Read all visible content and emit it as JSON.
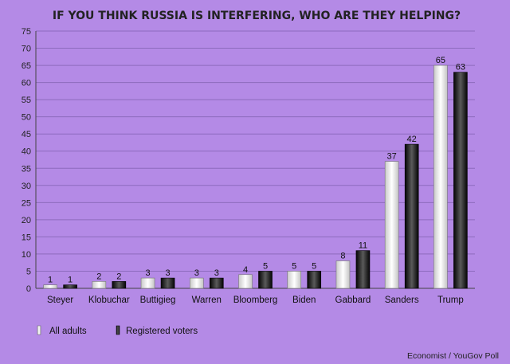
{
  "chart_data": {
    "type": "bar",
    "title": "IF YOU THINK RUSSIA IS INTERFERING, WHO ARE THEY HELPING?",
    "categories": [
      "Steyer",
      "Klobuchar",
      "Buttigieg",
      "Warren",
      "Bloomberg",
      "Biden",
      "Gabbard",
      "Sanders",
      "Trump"
    ],
    "series": [
      {
        "name": "All adults",
        "values": [
          1,
          2,
          3,
          3,
          4,
          5,
          8,
          37,
          65
        ],
        "color": "#ffffff"
      },
      {
        "name": "Registered voters",
        "values": [
          1,
          2,
          3,
          3,
          5,
          5,
          11,
          42,
          63
        ],
        "color": "#111111"
      }
    ],
    "ylim": [
      0,
      75
    ],
    "yticks": [
      0,
      5,
      10,
      15,
      20,
      25,
      30,
      35,
      40,
      45,
      50,
      55,
      60,
      65,
      70,
      75
    ],
    "xlabel": "",
    "ylabel": "",
    "grid": true,
    "legend": "bottom-left",
    "source": "Economist / YouGov Poll"
  },
  "colors": {
    "background": "#b48ae6",
    "grid": "#8d6bbd",
    "axis": "#444444"
  }
}
